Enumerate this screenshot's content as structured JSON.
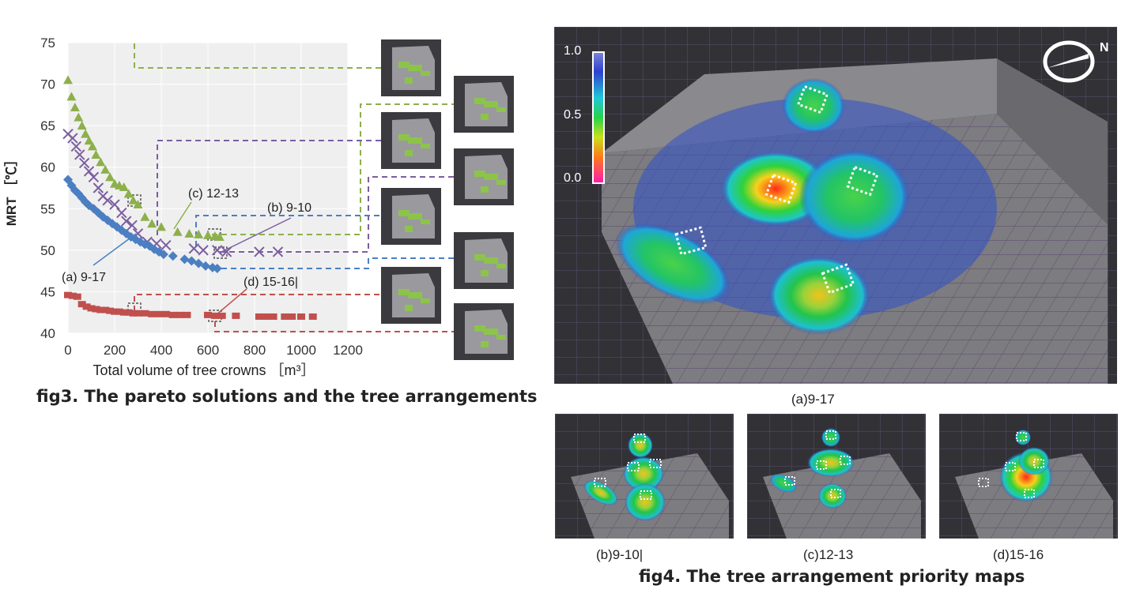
{
  "fig3": {
    "caption": "fig3.  The pareto solutions and the tree arrangements",
    "chart_data": {
      "type": "scatter",
      "xlabel": "Total volume of tree crowns ［m³］",
      "ylabel": "MRT ［℃］",
      "xlim": [
        0,
        1200
      ],
      "ylim": [
        40,
        75
      ],
      "x_ticks": [
        "0",
        "200",
        "400",
        "600",
        "800",
        "1000",
        "1200"
      ],
      "y_ticks": [
        "40",
        "45",
        "50",
        "55",
        "60",
        "65",
        "70",
        "75"
      ],
      "grid": true,
      "series": [
        {
          "marker": "triangle",
          "color": "#8db04c",
          "points": [
            [
              0,
              70.5
            ],
            [
              15,
              68.5
            ],
            [
              30,
              67.2
            ],
            [
              45,
              66
            ],
            [
              60,
              65
            ],
            [
              75,
              64
            ],
            [
              90,
              63.2
            ],
            [
              105,
              62.5
            ],
            [
              120,
              61.5
            ],
            [
              140,
              60.6
            ],
            [
              160,
              59.7
            ],
            [
              180,
              58.8
            ],
            [
              200,
              58
            ],
            [
              220,
              57.8
            ],
            [
              240,
              57.6
            ],
            [
              260,
              56.8
            ],
            [
              280,
              56
            ],
            [
              300,
              55.5
            ],
            [
              330,
              54
            ],
            [
              360,
              53.2
            ],
            [
              400,
              52.8
            ],
            [
              470,
              52.2
            ],
            [
              520,
              52
            ],
            [
              560,
              51.9
            ],
            [
              600,
              51.8
            ],
            [
              630,
              51.7
            ],
            [
              650,
              51.6
            ]
          ]
        },
        {
          "marker": "x",
          "color": "#7b5ea0",
          "points": [
            [
              0,
              64
            ],
            [
              20,
              63.5
            ],
            [
              35,
              62.5
            ],
            [
              50,
              61.5
            ],
            [
              70,
              60.5
            ],
            [
              90,
              59.5
            ],
            [
              110,
              58.8
            ],
            [
              130,
              57.5
            ],
            [
              150,
              56.5
            ],
            [
              170,
              56
            ],
            [
              200,
              55.5
            ],
            [
              230,
              54.5
            ],
            [
              250,
              53.5
            ],
            [
              275,
              53
            ],
            [
              300,
              52
            ],
            [
              340,
              51
            ],
            [
              380,
              50.8
            ],
            [
              420,
              50.6
            ],
            [
              540,
              50.2
            ],
            [
              580,
              50
            ],
            [
              640,
              50
            ],
            [
              680,
              49.8
            ],
            [
              820,
              49.8
            ],
            [
              900,
              49.8
            ]
          ]
        },
        {
          "marker": "diamond",
          "color": "#4b7fc2",
          "points": [
            [
              0,
              58.5
            ],
            [
              15,
              57.8
            ],
            [
              30,
              57.2
            ],
            [
              45,
              56.8
            ],
            [
              60,
              56.3
            ],
            [
              75,
              55.8
            ],
            [
              90,
              55.4
            ],
            [
              110,
              55
            ],
            [
              130,
              54.5
            ],
            [
              150,
              54
            ],
            [
              170,
              53.6
            ],
            [
              190,
              53.2
            ],
            [
              210,
              52.8
            ],
            [
              230,
              52.4
            ],
            [
              250,
              52
            ],
            [
              270,
              51.6
            ],
            [
              290,
              51.3
            ],
            [
              310,
              51
            ],
            [
              330,
              50.7
            ],
            [
              350,
              50.5
            ],
            [
              370,
              50.1
            ],
            [
              390,
              49.8
            ],
            [
              410,
              49.5
            ],
            [
              450,
              49.3
            ],
            [
              500,
              48.9
            ],
            [
              530,
              48.7
            ],
            [
              560,
              48.4
            ],
            [
              590,
              48.1
            ],
            [
              620,
              47.9
            ],
            [
              640,
              47.8
            ]
          ]
        },
        {
          "marker": "square",
          "color": "#c0504d",
          "points": [
            [
              0,
              44.6
            ],
            [
              20,
              44.5
            ],
            [
              40,
              44.4
            ],
            [
              60,
              43.5
            ],
            [
              80,
              43.2
            ],
            [
              100,
              43
            ],
            [
              120,
              42.9
            ],
            [
              140,
              42.8
            ],
            [
              160,
              42.8
            ],
            [
              180,
              42.7
            ],
            [
              200,
              42.6
            ],
            [
              220,
              42.6
            ],
            [
              240,
              42.5
            ],
            [
              260,
              42.5
            ],
            [
              280,
              42.4
            ],
            [
              300,
              42.4
            ],
            [
              330,
              42.4
            ],
            [
              360,
              42.3
            ],
            [
              390,
              42.3
            ],
            [
              420,
              42.3
            ],
            [
              450,
              42.2
            ],
            [
              480,
              42.2
            ],
            [
              510,
              42.2
            ],
            [
              600,
              42.2
            ],
            [
              630,
              42.1
            ],
            [
              660,
              42.1
            ],
            [
              720,
              42.1
            ],
            [
              820,
              42
            ],
            [
              850,
              42
            ],
            [
              880,
              42
            ],
            [
              930,
              42
            ],
            [
              960,
              42
            ],
            [
              1000,
              42
            ],
            [
              1050,
              42
            ]
          ]
        }
      ],
      "annotations": [
        {
          "text": "(a) 9-17"
        },
        {
          "text": "(b) 9-10"
        },
        {
          "text": "(c) 12-13"
        },
        {
          "text": "(d) 15-16|"
        }
      ]
    }
  },
  "fig4": {
    "caption": "fig4.  The tree arrangement priority maps",
    "colorbar_ticks": [
      "1.0",
      "0.5",
      "0.0"
    ],
    "north_label": "N",
    "maps": [
      {
        "label": "(a)9-17"
      },
      {
        "label": "(b)9-10|"
      },
      {
        "label": "(c)12-13"
      },
      {
        "label": "(d)15-16"
      }
    ]
  }
}
